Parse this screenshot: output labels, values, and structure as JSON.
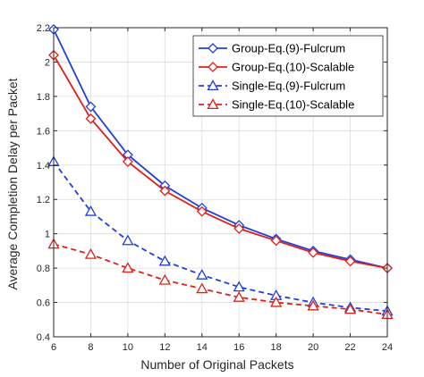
{
  "chart_data": {
    "type": "line",
    "xlabel": "Number of Original Packets",
    "ylabel": "Average Completion Delay per Packet",
    "xlim": [
      6,
      24
    ],
    "ylim": [
      0.4,
      2.2
    ],
    "xticks": [
      6,
      8,
      10,
      12,
      14,
      16,
      18,
      20,
      22,
      24
    ],
    "yticks": [
      0.4,
      0.6,
      0.8,
      1,
      1.2,
      1.4,
      1.6,
      1.8,
      2,
      2.2
    ],
    "grid": true,
    "legend_position": "top-right",
    "x": [
      6,
      8,
      10,
      12,
      14,
      16,
      18,
      20,
      22,
      24
    ],
    "series": [
      {
        "name": "Group-Eq.(9)-Fulcrum",
        "color": "#1f3fe0",
        "line_style": "solid",
        "marker": "diamond",
        "values": [
          2.19,
          1.74,
          1.46,
          1.28,
          1.15,
          1.05,
          0.97,
          0.9,
          0.85,
          0.8
        ]
      },
      {
        "name": "Group-Eq.(10)-Scalable",
        "color": "#e0201a",
        "line_style": "solid",
        "marker": "diamond",
        "values": [
          2.04,
          1.67,
          1.42,
          1.25,
          1.13,
          1.03,
          0.96,
          0.89,
          0.84,
          0.8
        ]
      },
      {
        "name": "Single-Eq.(9)-Fulcrum",
        "color": "#1f3fe0",
        "line_style": "dashed",
        "marker": "triangle",
        "values": [
          1.42,
          1.13,
          0.96,
          0.84,
          0.76,
          0.69,
          0.64,
          0.6,
          0.57,
          0.55
        ]
      },
      {
        "name": "Single-Eq.(10)-Scalable",
        "color": "#e0201a",
        "line_style": "dashed",
        "marker": "triangle",
        "values": [
          0.94,
          0.88,
          0.8,
          0.73,
          0.68,
          0.63,
          0.6,
          0.58,
          0.56,
          0.53
        ]
      }
    ]
  }
}
